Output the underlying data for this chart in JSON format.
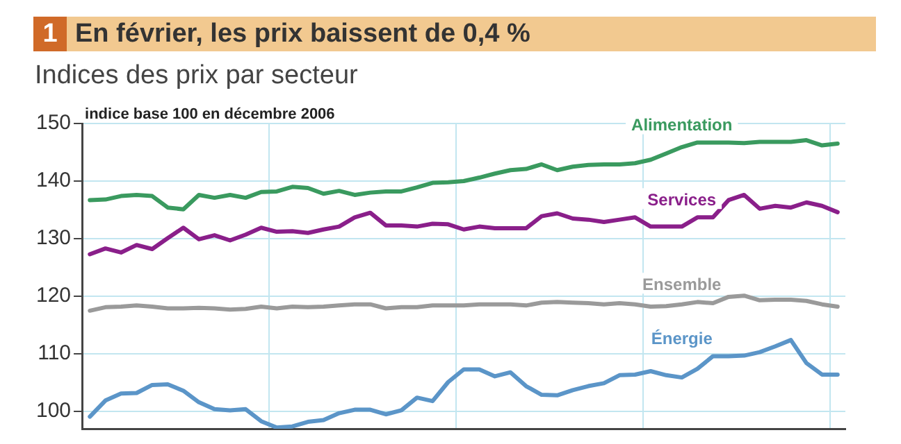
{
  "chart_data": {
    "type": "line",
    "title": "En février, les prix baissent de 0,4 %",
    "subtitle": "Indices des prix par secteur",
    "ylabel": "indice base 100 en décembre 2006",
    "annotations": [
      "1"
    ],
    "categories": [
      null,
      null,
      null,
      null,
      null,
      null,
      null,
      null,
      null,
      null,
      null,
      null,
      null,
      null,
      null,
      null,
      null,
      null,
      null,
      null,
      null,
      null,
      null,
      null,
      null,
      null,
      null,
      null,
      null,
      null,
      null,
      null,
      null,
      null,
      null,
      null,
      null,
      null,
      null,
      null,
      null,
      null,
      null,
      null,
      null,
      null,
      null,
      null,
      null
    ],
    "ylim": [
      97,
      150
    ],
    "yticks": [
      100,
      110,
      120,
      130,
      140,
      150
    ],
    "tick_labels": "y",
    "grid": true,
    "legend": false,
    "marker": "none",
    "line_style": "solid",
    "series": [
      {
        "name": "Alimentation",
        "color": "#3a9a5f",
        "values": [
          136.7,
          136.8,
          137.4,
          137.6,
          137.4,
          135.4,
          135.1,
          137.6,
          137.1,
          137.6,
          137.1,
          138.1,
          138.2,
          139.0,
          138.8,
          137.8,
          138.3,
          137.6,
          138.0,
          138.2,
          138.2,
          138.9,
          139.7,
          139.8,
          140.0,
          140.6,
          141.3,
          141.9,
          142.1,
          142.9,
          141.9,
          142.5,
          142.8,
          142.9,
          142.9,
          143.1,
          143.7,
          144.8,
          145.9,
          146.7,
          146.7,
          146.7,
          146.6,
          146.8,
          146.8,
          146.8,
          147.1,
          146.2,
          146.5
        ]
      },
      {
        "name": "Services",
        "color": "#8a1f8a",
        "values": [
          127.3,
          128.3,
          127.6,
          128.9,
          128.2,
          130.1,
          131.9,
          129.9,
          130.6,
          129.7,
          130.7,
          131.9,
          131.2,
          131.3,
          131.0,
          131.6,
          132.1,
          133.7,
          134.5,
          132.3,
          132.3,
          132.1,
          132.6,
          132.5,
          131.6,
          132.1,
          131.8,
          131.8,
          131.8,
          133.9,
          134.4,
          133.5,
          133.3,
          132.9,
          133.3,
          133.7,
          132.1,
          132.1,
          132.1,
          133.7,
          133.7,
          136.7,
          137.6,
          135.2,
          135.7,
          135.4,
          136.3,
          135.7,
          134.6
        ]
      },
      {
        "name": "Ensemble",
        "color": "#9a9a9a",
        "values": [
          117.5,
          118.1,
          118.2,
          118.4,
          118.2,
          117.9,
          117.9,
          118.0,
          117.9,
          117.7,
          117.8,
          118.2,
          117.9,
          118.2,
          118.1,
          118.2,
          118.4,
          118.6,
          118.6,
          117.9,
          118.1,
          118.1,
          118.4,
          118.4,
          118.4,
          118.6,
          118.6,
          118.6,
          118.4,
          118.9,
          119.0,
          118.9,
          118.8,
          118.6,
          118.8,
          118.6,
          118.2,
          118.3,
          118.6,
          119.0,
          118.8,
          119.9,
          120.1,
          119.3,
          119.4,
          119.4,
          119.2,
          118.6,
          118.2
        ]
      },
      {
        "name": "Énergie",
        "color": "#5b95c8",
        "values": [
          99.1,
          101.9,
          103.1,
          103.2,
          104.6,
          104.7,
          103.6,
          101.6,
          100.4,
          100.2,
          100.4,
          98.3,
          97.2,
          97.4,
          98.2,
          98.5,
          99.7,
          100.3,
          100.3,
          99.5,
          100.2,
          102.4,
          101.8,
          105.1,
          107.3,
          107.3,
          106.1,
          106.8,
          104.4,
          102.9,
          102.8,
          103.7,
          104.4,
          104.9,
          106.3,
          106.4,
          107.0,
          106.3,
          105.9,
          107.4,
          109.6,
          109.6,
          109.7,
          110.3,
          111.3,
          112.4,
          108.4,
          106.4,
          106.4
        ]
      }
    ]
  }
}
